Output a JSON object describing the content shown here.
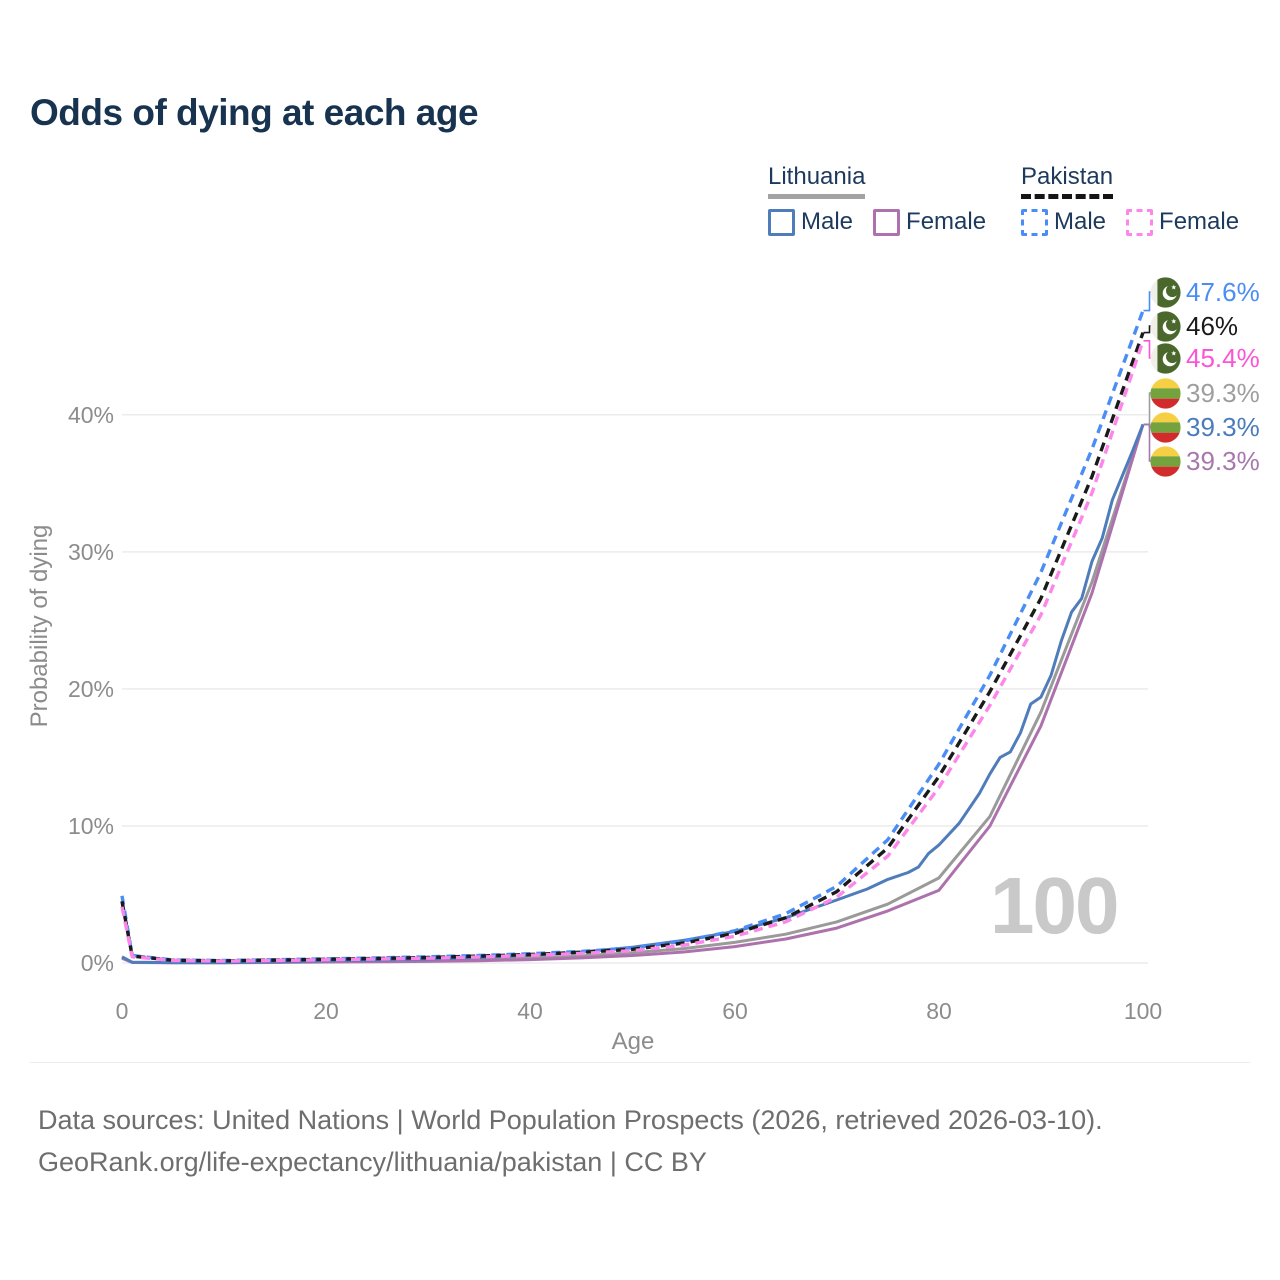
{
  "title": "Odds of dying at each age",
  "legend": {
    "groups": [
      {
        "label": "Lithuania",
        "line_style": "solid",
        "underline_color": "#a3a3a3",
        "items": [
          {
            "label": "Male",
            "color": "#4f7cba"
          },
          {
            "label": "Female",
            "color": "#ad72ad"
          }
        ]
      },
      {
        "label": "Pakistan",
        "line_style": "dashed",
        "underline_color": "#151515",
        "items": [
          {
            "label": "Male",
            "color": "#4a8df5"
          },
          {
            "label": "Female",
            "color": "#fc86e9"
          }
        ]
      }
    ]
  },
  "chart_data": {
    "type": "line",
    "title": "Odds of dying at each age",
    "xlabel": "Age",
    "ylabel": "Probability of dying",
    "xlim": [
      0,
      100
    ],
    "ylim_pct": [
      0,
      50
    ],
    "x_ticks": [
      "0",
      "20",
      "40",
      "60",
      "80",
      "100"
    ],
    "y_ticks": [
      "0%",
      "10%",
      "20%",
      "30%",
      "40%"
    ],
    "grid": "horizontal",
    "watermark": "100",
    "legend_position": "top-right",
    "series": [
      {
        "name": "Pakistan Male",
        "country": "Pakistan",
        "sex": "male",
        "color": "#4a8df5",
        "dashed": true,
        "end_value_pct": 47.6,
        "points": [
          [
            0,
            4.9
          ],
          [
            1,
            0.55
          ],
          [
            5,
            0.22
          ],
          [
            10,
            0.18
          ],
          [
            15,
            0.24
          ],
          [
            20,
            0.3
          ],
          [
            25,
            0.37
          ],
          [
            30,
            0.45
          ],
          [
            35,
            0.55
          ],
          [
            40,
            0.68
          ],
          [
            45,
            0.85
          ],
          [
            50,
            1.1
          ],
          [
            55,
            1.6
          ],
          [
            60,
            2.35
          ],
          [
            65,
            3.6
          ],
          [
            70,
            5.6
          ],
          [
            75,
            9.0
          ],
          [
            80,
            14.5
          ],
          [
            85,
            21.0
          ],
          [
            90,
            28.5
          ],
          [
            95,
            37.5
          ],
          [
            100,
            47.6
          ]
        ]
      },
      {
        "name": "Pakistan (both sexes)",
        "country": "Pakistan",
        "sex": "both",
        "color": "#1a1a1a",
        "dashed": true,
        "end_value_pct": 46,
        "points": [
          [
            0,
            4.5
          ],
          [
            1,
            0.5
          ],
          [
            5,
            0.2
          ],
          [
            10,
            0.16
          ],
          [
            15,
            0.21
          ],
          [
            20,
            0.27
          ],
          [
            25,
            0.33
          ],
          [
            30,
            0.4
          ],
          [
            35,
            0.5
          ],
          [
            40,
            0.62
          ],
          [
            45,
            0.78
          ],
          [
            50,
            1.0
          ],
          [
            55,
            1.45
          ],
          [
            60,
            2.15
          ],
          [
            65,
            3.3
          ],
          [
            70,
            5.2
          ],
          [
            75,
            8.4
          ],
          [
            80,
            13.6
          ],
          [
            85,
            19.8
          ],
          [
            90,
            26.6
          ],
          [
            95,
            35.5
          ],
          [
            100,
            46.0
          ]
        ]
      },
      {
        "name": "Pakistan Female",
        "country": "Pakistan",
        "sex": "female",
        "color": "#fc86e9",
        "dashed": true,
        "end_value_pct": 45.4,
        "points": [
          [
            0,
            4.1
          ],
          [
            1,
            0.45
          ],
          [
            5,
            0.18
          ],
          [
            10,
            0.14
          ],
          [
            15,
            0.18
          ],
          [
            20,
            0.23
          ],
          [
            25,
            0.29
          ],
          [
            30,
            0.35
          ],
          [
            35,
            0.44
          ],
          [
            40,
            0.56
          ],
          [
            45,
            0.7
          ],
          [
            50,
            0.9
          ],
          [
            55,
            1.3
          ],
          [
            60,
            1.95
          ],
          [
            65,
            3.0
          ],
          [
            70,
            4.8
          ],
          [
            75,
            7.8
          ],
          [
            80,
            12.8
          ],
          [
            85,
            18.8
          ],
          [
            90,
            25.4
          ],
          [
            95,
            34.3
          ],
          [
            100,
            45.4
          ]
        ]
      },
      {
        "name": "Lithuania (both sexes)",
        "country": "Lithuania",
        "sex": "both",
        "color": "#9a9a9a",
        "dashed": false,
        "end_value_pct": 39.3,
        "points": [
          [
            0,
            0.4
          ],
          [
            1,
            0.05
          ],
          [
            5,
            0.03
          ],
          [
            10,
            0.03
          ],
          [
            15,
            0.06
          ],
          [
            20,
            0.11
          ],
          [
            25,
            0.15
          ],
          [
            30,
            0.19
          ],
          [
            35,
            0.26
          ],
          [
            40,
            0.37
          ],
          [
            45,
            0.52
          ],
          [
            50,
            0.75
          ],
          [
            55,
            1.05
          ],
          [
            60,
            1.5
          ],
          [
            65,
            2.1
          ],
          [
            70,
            3.0
          ],
          [
            75,
            4.3
          ],
          [
            80,
            6.2
          ],
          [
            85,
            10.7
          ],
          [
            90,
            18.3
          ],
          [
            95,
            27.8
          ],
          [
            100,
            39.3
          ]
        ]
      },
      {
        "name": "Lithuania Male",
        "country": "Lithuania",
        "sex": "male",
        "color": "#4f7cba",
        "dashed": false,
        "end_value_pct": 39.3,
        "points": [
          [
            0,
            0.45
          ],
          [
            1,
            0.06
          ],
          [
            5,
            0.03
          ],
          [
            10,
            0.03
          ],
          [
            15,
            0.09
          ],
          [
            20,
            0.17
          ],
          [
            25,
            0.22
          ],
          [
            30,
            0.29
          ],
          [
            35,
            0.4
          ],
          [
            40,
            0.56
          ],
          [
            45,
            0.8
          ],
          [
            50,
            1.15
          ],
          [
            55,
            1.65
          ],
          [
            60,
            2.3
          ],
          [
            65,
            3.3
          ],
          [
            70,
            4.6
          ],
          [
            73,
            5.4
          ],
          [
            75,
            6.1
          ],
          [
            77,
            6.6
          ],
          [
            78,
            7.0
          ],
          [
            79,
            8.0
          ],
          [
            80,
            8.6
          ],
          [
            82,
            10.2
          ],
          [
            84,
            12.4
          ],
          [
            85,
            13.8
          ],
          [
            86,
            15.0
          ],
          [
            87,
            15.4
          ],
          [
            88,
            16.8
          ],
          [
            89,
            18.9
          ],
          [
            90,
            19.4
          ],
          [
            91,
            21.0
          ],
          [
            92,
            23.5
          ],
          [
            93,
            25.6
          ],
          [
            94,
            26.6
          ],
          [
            95,
            29.3
          ],
          [
            96,
            31.0
          ],
          [
            97,
            33.8
          ],
          [
            98,
            35.6
          ],
          [
            99,
            37.4
          ],
          [
            100,
            39.3
          ]
        ]
      },
      {
        "name": "Lithuania Female",
        "country": "Lithuania",
        "sex": "female",
        "color": "#ad72ad",
        "dashed": false,
        "end_value_pct": 39.3,
        "points": [
          [
            0,
            0.35
          ],
          [
            1,
            0.04
          ],
          [
            5,
            0.02
          ],
          [
            10,
            0.02
          ],
          [
            15,
            0.04
          ],
          [
            20,
            0.07
          ],
          [
            25,
            0.09
          ],
          [
            30,
            0.12
          ],
          [
            35,
            0.17
          ],
          [
            40,
            0.25
          ],
          [
            45,
            0.37
          ],
          [
            50,
            0.55
          ],
          [
            55,
            0.8
          ],
          [
            60,
            1.2
          ],
          [
            65,
            1.75
          ],
          [
            70,
            2.55
          ],
          [
            75,
            3.8
          ],
          [
            80,
            5.3
          ],
          [
            85,
            10.0
          ],
          [
            90,
            17.3
          ],
          [
            95,
            27.0
          ],
          [
            100,
            39.3
          ]
        ]
      }
    ],
    "end_labels": [
      {
        "text": "47.6%",
        "color": "#4a8df5",
        "flag": "pakistan",
        "series": "Pakistan Male"
      },
      {
        "text": "46%",
        "color": "#1a1a1a",
        "flag": "pakistan",
        "series": "Pakistan (both sexes)"
      },
      {
        "text": "45.4%",
        "color": "#fb55d7",
        "flag": "pakistan",
        "series": "Pakistan Female"
      },
      {
        "text": "39.3%",
        "color": "#9e9e9e",
        "flag": "lithuania",
        "series": "Lithuania (both sexes)"
      },
      {
        "text": "39.3%",
        "color": "#4a7bbd",
        "flag": "lithuania",
        "series": "Lithuania Male"
      },
      {
        "text": "39.3%",
        "color": "#a877ad",
        "flag": "lithuania",
        "series": "Lithuania Female"
      }
    ]
  },
  "footer": {
    "line1": "Data sources: United Nations | World Population Prospects (2026, retrieved 2026-03-10).",
    "line2": "GeoRank.org/life-expectancy/lithuania/pakistan | CC BY"
  }
}
